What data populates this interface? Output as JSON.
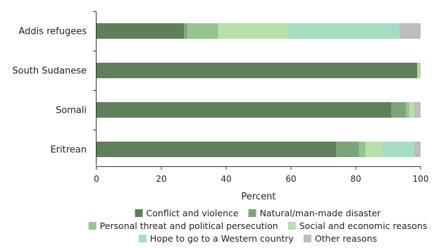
{
  "chart_data": {
    "type": "bar",
    "orientation": "horizontal",
    "stacked": true,
    "categories": [
      "Addis refugees",
      "South Sudanese",
      "Somali",
      "Eritrean"
    ],
    "series": [
      {
        "name": "Conflict and violence",
        "color": "#5f7f5a",
        "values": [
          27,
          99,
          91,
          74
        ]
      },
      {
        "name": "Natural/man-made disaster",
        "color": "#7ea47a",
        "values": [
          1,
          0,
          4.5,
          7
        ]
      },
      {
        "name": "Personal threat and political persecution",
        "color": "#96c48f",
        "values": [
          9.5,
          0,
          1,
          2
        ]
      },
      {
        "name": "Social and economic reasons",
        "color": "#b9dfaa",
        "values": [
          21.5,
          0.5,
          1.5,
          5
        ]
      },
      {
        "name": "Hope to go to a Western country",
        "color": "#a6dcc2",
        "values": [
          34.5,
          0,
          0,
          10
        ]
      },
      {
        "name": "Other reasons",
        "color": "#bdbdbd",
        "values": [
          6.5,
          0.5,
          2,
          2
        ]
      }
    ],
    "xlabel": "Percent",
    "xlim": [
      0,
      100
    ],
    "xticks": [
      0,
      20,
      40,
      60,
      80,
      100
    ],
    "legend_position": "bottom",
    "grid": false
  }
}
